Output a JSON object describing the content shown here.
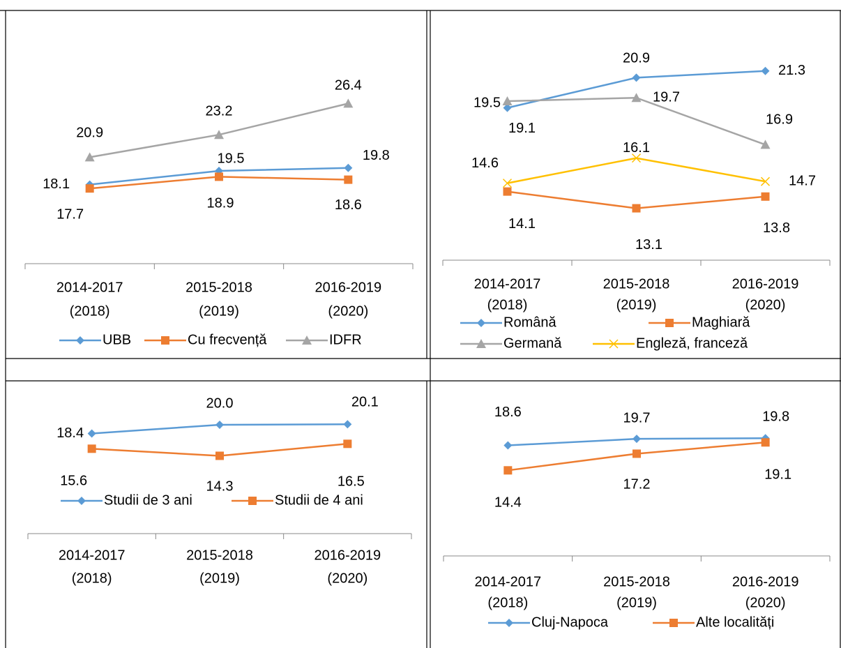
{
  "chart_data": [
    {
      "type": "line",
      "ylim": [
        10,
        30
      ],
      "categories": [
        [
          "2014-2017",
          "(2018)"
        ],
        [
          "2015-2018",
          "(2019)"
        ],
        [
          "2016-2019",
          "(2020)"
        ]
      ],
      "series": [
        {
          "name": "UBB",
          "color": "#5b9bd5",
          "marker": "diamond",
          "values": [
            18.1,
            19.5,
            19.8
          ]
        },
        {
          "name": "Cu frecvență",
          "color": "#ed7d31",
          "marker": "square",
          "values": [
            17.7,
            18.9,
            18.6
          ]
        },
        {
          "name": "IDFR",
          "color": "#a5a5a5",
          "marker": "triangle",
          "values": [
            20.9,
            23.2,
            26.4
          ]
        }
      ]
    },
    {
      "type": "line",
      "ylim": [
        10,
        22
      ],
      "categories": [
        [
          "2014-2017",
          "(2018)"
        ],
        [
          "2015-2018",
          "(2019)"
        ],
        [
          "2016-2019",
          "(2020)"
        ]
      ],
      "series": [
        {
          "name": "Română",
          "color": "#5b9bd5",
          "marker": "diamond",
          "values": [
            19.1,
            20.9,
            21.3
          ]
        },
        {
          "name": "Maghiară",
          "color": "#ed7d31",
          "marker": "square",
          "values": [
            14.1,
            13.1,
            13.8
          ]
        },
        {
          "name": "Germană",
          "color": "#a5a5a5",
          "marker": "triangle",
          "values": [
            19.5,
            19.7,
            16.9
          ]
        },
        {
          "name": "Engleză, franceză",
          "color": "#ffc000",
          "marker": "x",
          "values": [
            14.6,
            16.1,
            14.7
          ]
        }
      ]
    },
    {
      "type": "line",
      "ylim": [
        0,
        25
      ],
      "categories": [
        [
          "2014-2017",
          "(2018)"
        ],
        [
          "2015-2018",
          "(2019)"
        ],
        [
          "2016-2019",
          "(2020)"
        ]
      ],
      "series": [
        {
          "name": "Studii de 3 ani",
          "color": "#5b9bd5",
          "marker": "diamond",
          "values": [
            18.4,
            20.0,
            20.1
          ],
          "value_labels": [
            "18.4",
            "20.0",
            "20.1"
          ]
        },
        {
          "name": "Studii de 4 ani",
          "color": "#ed7d31",
          "marker": "square",
          "values": [
            15.6,
            14.3,
            16.5
          ]
        }
      ]
    },
    {
      "type": "line",
      "ylim": [
        0,
        25
      ],
      "categories": [
        [
          "2014-2017",
          "(2018)"
        ],
        [
          "2015-2018",
          "(2019)"
        ],
        [
          "2016-2019",
          "(2020)"
        ]
      ],
      "series": [
        {
          "name": "Cluj-Napoca",
          "color": "#5b9bd5",
          "marker": "diamond",
          "values": [
            18.6,
            19.7,
            19.8
          ]
        },
        {
          "name": "Alte localități",
          "color": "#ed7d31",
          "marker": "square",
          "values": [
            14.4,
            17.2,
            19.1
          ]
        }
      ]
    }
  ]
}
